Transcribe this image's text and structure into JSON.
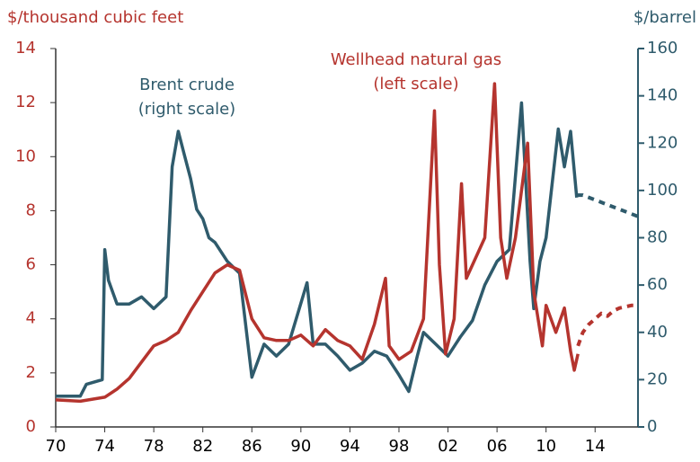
{
  "chart_data": {
    "type": "line",
    "ylabel": "$/thousand cubic feet",
    "y2label": "$/barrel",
    "xlim": [
      1970,
      2017.5
    ],
    "xticks": [
      {
        "value": 1970,
        "label": "70"
      },
      {
        "value": 1974,
        "label": "74"
      },
      {
        "value": 1978,
        "label": "78"
      },
      {
        "value": 1982,
        "label": "82"
      },
      {
        "value": 1986,
        "label": "86"
      },
      {
        "value": 1990,
        "label": "90"
      },
      {
        "value": 1994,
        "label": "94"
      },
      {
        "value": 1998,
        "label": "98"
      },
      {
        "value": 2002,
        "label": "02"
      },
      {
        "value": 2006,
        "label": "06"
      },
      {
        "value": 2010,
        "label": "10"
      },
      {
        "value": 2014,
        "label": "14"
      }
    ],
    "ylim": [
      0,
      14
    ],
    "yticks": [
      0,
      2,
      4,
      6,
      8,
      10,
      12,
      14
    ],
    "y2lim": [
      0,
      160
    ],
    "y2ticks": [
      0,
      20,
      40,
      60,
      80,
      100,
      120,
      140,
      160
    ],
    "annotations": [
      {
        "lines": [
          "Brent crude",
          "(right scale)"
        ],
        "color": "#2f5b6c"
      },
      {
        "lines": [
          "Wellhead natural gas",
          "(left scale)"
        ],
        "color": "#b5342e"
      }
    ],
    "series": [
      {
        "color": "#2f5b6c",
        "axis": "y2",
        "dashed": false,
        "x": [
          1970,
          1972,
          1972.5,
          1973.8,
          1974,
          1974.3,
          1975,
          1976,
          1977,
          1978,
          1979,
          1979.5,
          1980,
          1980.5,
          1981,
          1981.5,
          1982,
          1982.5,
          1983,
          1984,
          1985,
          1986,
          1986.5,
          1987,
          1988,
          1989,
          1990.5,
          1991,
          1992,
          1993,
          1994,
          1995,
          1996,
          1997,
          1998,
          1998.8,
          1999.5,
          2000,
          2001,
          2002,
          2003,
          2004,
          2005,
          2006,
          2007,
          2008,
          2008.7,
          2009,
          2009.5,
          2010,
          2011,
          2011.5,
          2012,
          2012.5
        ],
        "values": [
          13,
          13,
          18,
          20,
          75,
          62,
          52,
          52,
          55,
          50,
          55,
          110,
          125,
          115,
          105,
          92,
          88,
          80,
          78,
          70,
          65,
          21,
          28,
          35,
          30,
          35,
          61,
          35,
          35,
          30,
          24,
          27,
          32,
          30,
          22,
          15,
          30,
          40,
          35,
          30,
          38,
          45,
          60,
          70,
          75,
          137,
          70,
          50,
          70,
          80,
          126,
          110,
          125,
          97
        ]
      },
      {
        "color": "#2f5b6c",
        "axis": "y2",
        "dashed": true,
        "x": [
          2012.5,
          2013,
          2014,
          2015,
          2016,
          2017.5
        ],
        "values": [
          98,
          98,
          96,
          94,
          92,
          89
        ]
      },
      {
        "color": "#b5342e",
        "axis": "y",
        "dashed": false,
        "x": [
          1970,
          1972,
          1974,
          1975,
          1976,
          1977,
          1978,
          1979,
          1980,
          1981,
          1982,
          1983,
          1984,
          1985,
          1986,
          1987,
          1988,
          1989,
          1990,
          1991,
          1992,
          1993,
          1994,
          1995,
          1996,
          1996.9,
          1997.2,
          1998,
          1999,
          2000,
          2000.9,
          2001.3,
          2001.8,
          2002.5,
          2003.1,
          2003.5,
          2004.5,
          2005,
          2005.8,
          2006.3,
          2006.8,
          2007.5,
          2008.5,
          2009,
          2009.7,
          2010,
          2010.8,
          2011.5,
          2012,
          2012.3,
          2012.6
        ],
        "values": [
          1.0,
          0.95,
          1.1,
          1.4,
          1.8,
          2.4,
          3.0,
          3.2,
          3.5,
          4.3,
          5.0,
          5.7,
          6.0,
          5.8,
          4.0,
          3.3,
          3.2,
          3.2,
          3.4,
          3.0,
          3.6,
          3.2,
          3.0,
          2.5,
          3.8,
          5.5,
          3.0,
          2.5,
          2.8,
          4.0,
          11.7,
          6.0,
          2.7,
          4.0,
          9.0,
          5.5,
          6.5,
          7.0,
          12.7,
          7.0,
          5.5,
          7.0,
          10.5,
          5.0,
          3.0,
          4.5,
          3.5,
          4.4,
          2.8,
          2.1,
          2.7
        ]
      },
      {
        "color": "#b5342e",
        "axis": "y",
        "dashed": true,
        "x": [
          2012.6,
          2013,
          2013.5,
          2014,
          2014.5,
          2015,
          2015.5,
          2016,
          2017,
          2017.5
        ],
        "values": [
          3.0,
          3.5,
          3.8,
          4.0,
          4.2,
          4.1,
          4.3,
          4.4,
          4.5,
          4.5
        ]
      }
    ]
  }
}
